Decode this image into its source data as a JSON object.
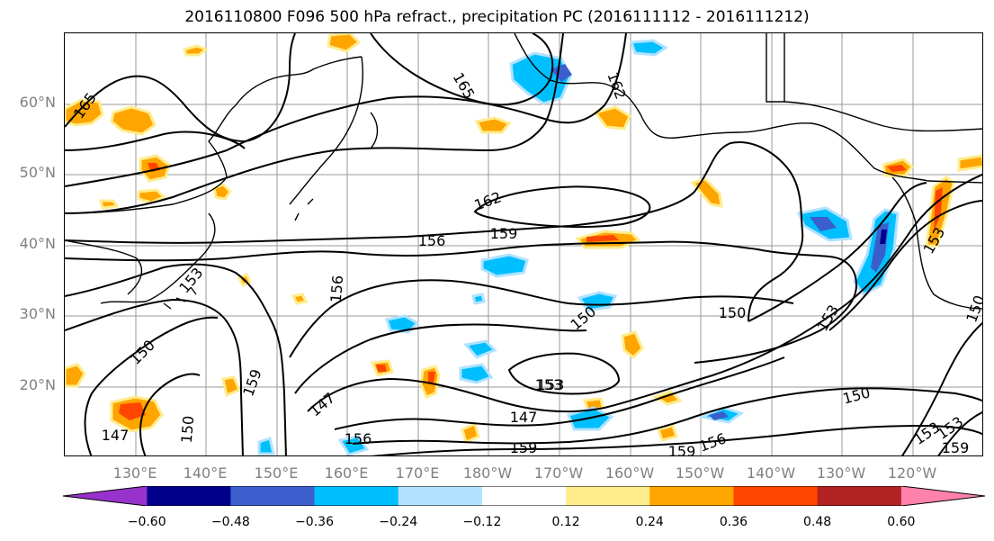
{
  "title": "2016110800 F096 500 hPa refract., precipitation PC (2016111112 - 2016111212)",
  "lat_labels": [
    "60°N",
    "50°N",
    "40°N",
    "30°N",
    "20°N"
  ],
  "lon_labels": [
    "130°E",
    "140°E",
    "150°E",
    "160°E",
    "170°E",
    "180°W",
    "170°W",
    "160°W",
    "150°W",
    "140°W",
    "130°W",
    "120°W"
  ],
  "contour_labels": [
    "165",
    "165",
    "162",
    "162",
    "156",
    "159",
    "156",
    "153",
    "150",
    "150",
    "153",
    "153",
    "150",
    "159",
    "147",
    "153",
    "147",
    "150",
    "147",
    "159",
    "156",
    "159",
    "156",
    "150",
    "150",
    "153",
    "159",
    "153",
    "153"
  ],
  "colorbar": {
    "ticks": [
      "−0.60",
      "−0.48",
      "−0.36",
      "−0.24",
      "−0.12",
      "0.12",
      "0.24",
      "0.36",
      "0.48",
      "0.60"
    ],
    "colors": [
      "#9932cc",
      "#00008b",
      "#3a5fcd",
      "#00bfff",
      "#b0e2ff",
      "#ffffff",
      "#ffec8b",
      "#ffa500",
      "#ff4500",
      "#b22222",
      "#ff82ab"
    ]
  }
}
